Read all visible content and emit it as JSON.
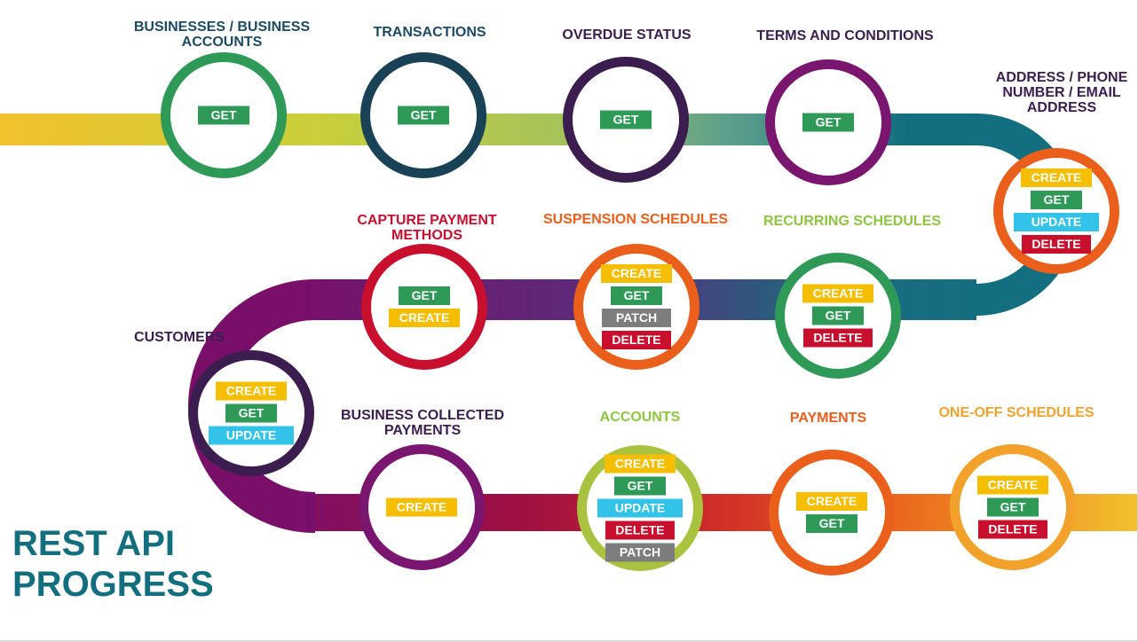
{
  "title": [
    "REST API",
    "PROGRESS"
  ],
  "colors": {
    "title": "#136f7f",
    "get": "#2f9a57",
    "create": "#f6be00",
    "update": "#33c3e8",
    "delete": "#c8102e",
    "patch": "#7d7d7d"
  },
  "nodes": [
    {
      "label": [
        "BUSINESSES / BUSINESS",
        "ACCOUNTS"
      ],
      "label_color": "#1d4b63",
      "ring_color": "#2f9a57",
      "methods": [
        "GET"
      ]
    },
    {
      "label": [
        "TRANSACTIONS"
      ],
      "label_color": "#1d4b63",
      "ring_color": "#1a4257",
      "methods": [
        "GET"
      ]
    },
    {
      "label": [
        "OVERDUE STATUS"
      ],
      "label_color": "#3b1d4f",
      "ring_color": "#3b1d4f",
      "methods": [
        "GET"
      ]
    },
    {
      "label": [
        "TERMS AND CONDITIONS"
      ],
      "label_color": "#3b1d4f",
      "ring_color": "#7a1570",
      "methods": [
        "GET"
      ]
    },
    {
      "label": [
        "ADDRESS / PHONE",
        "NUMBER / EMAIL",
        "ADDRESS"
      ],
      "label_color": "#3b1d4f",
      "ring_color": "#ea5f1c",
      "methods": [
        "CREATE",
        "GET",
        "UPDATE",
        "DELETE"
      ]
    },
    {
      "label": [
        "RECURRING SCHEDULES"
      ],
      "label_color": "#8cc63f",
      "ring_color": "#2f9a57",
      "methods": [
        "CREATE",
        "GET",
        "DELETE"
      ]
    },
    {
      "label": [
        "SUSPENSION SCHEDULES"
      ],
      "label_color": "#ea5f1c",
      "ring_color": "#ea5f1c",
      "methods": [
        "CREATE",
        "GET",
        "PATCH",
        "DELETE"
      ]
    },
    {
      "label": [
        "CAPTURE PAYMENT",
        "METHODS"
      ],
      "label_color": "#c8102e",
      "ring_color": "#c8102e",
      "methods": [
        "GET",
        "CREATE"
      ]
    },
    {
      "label": [
        "CUSTOMERS"
      ],
      "label_color": "#3b1d4f",
      "ring_color": "#3b1d4f",
      "methods": [
        "CREATE",
        "GET",
        "UPDATE"
      ]
    },
    {
      "label": [
        "BUSINESS COLLECTED",
        "PAYMENTS"
      ],
      "label_color": "#3b1d4f",
      "ring_color": "#7a1570",
      "methods": [
        "CREATE"
      ]
    },
    {
      "label": [
        "ACCOUNTS"
      ],
      "label_color": "#8cc63f",
      "ring_color": "#a9c23f",
      "methods": [
        "CREATE",
        "GET",
        "UPDATE",
        "DELETE",
        "PATCH"
      ]
    },
    {
      "label": [
        "PAYMENTS"
      ],
      "label_color": "#ea5f1c",
      "ring_color": "#ea5f1c",
      "methods": [
        "CREATE",
        "GET"
      ]
    },
    {
      "label": [
        "ONE-OFF SCHEDULES"
      ],
      "label_color": "#f2a22b",
      "ring_color": "#f2a22b",
      "methods": [
        "CREATE",
        "GET",
        "DELETE"
      ]
    }
  ]
}
